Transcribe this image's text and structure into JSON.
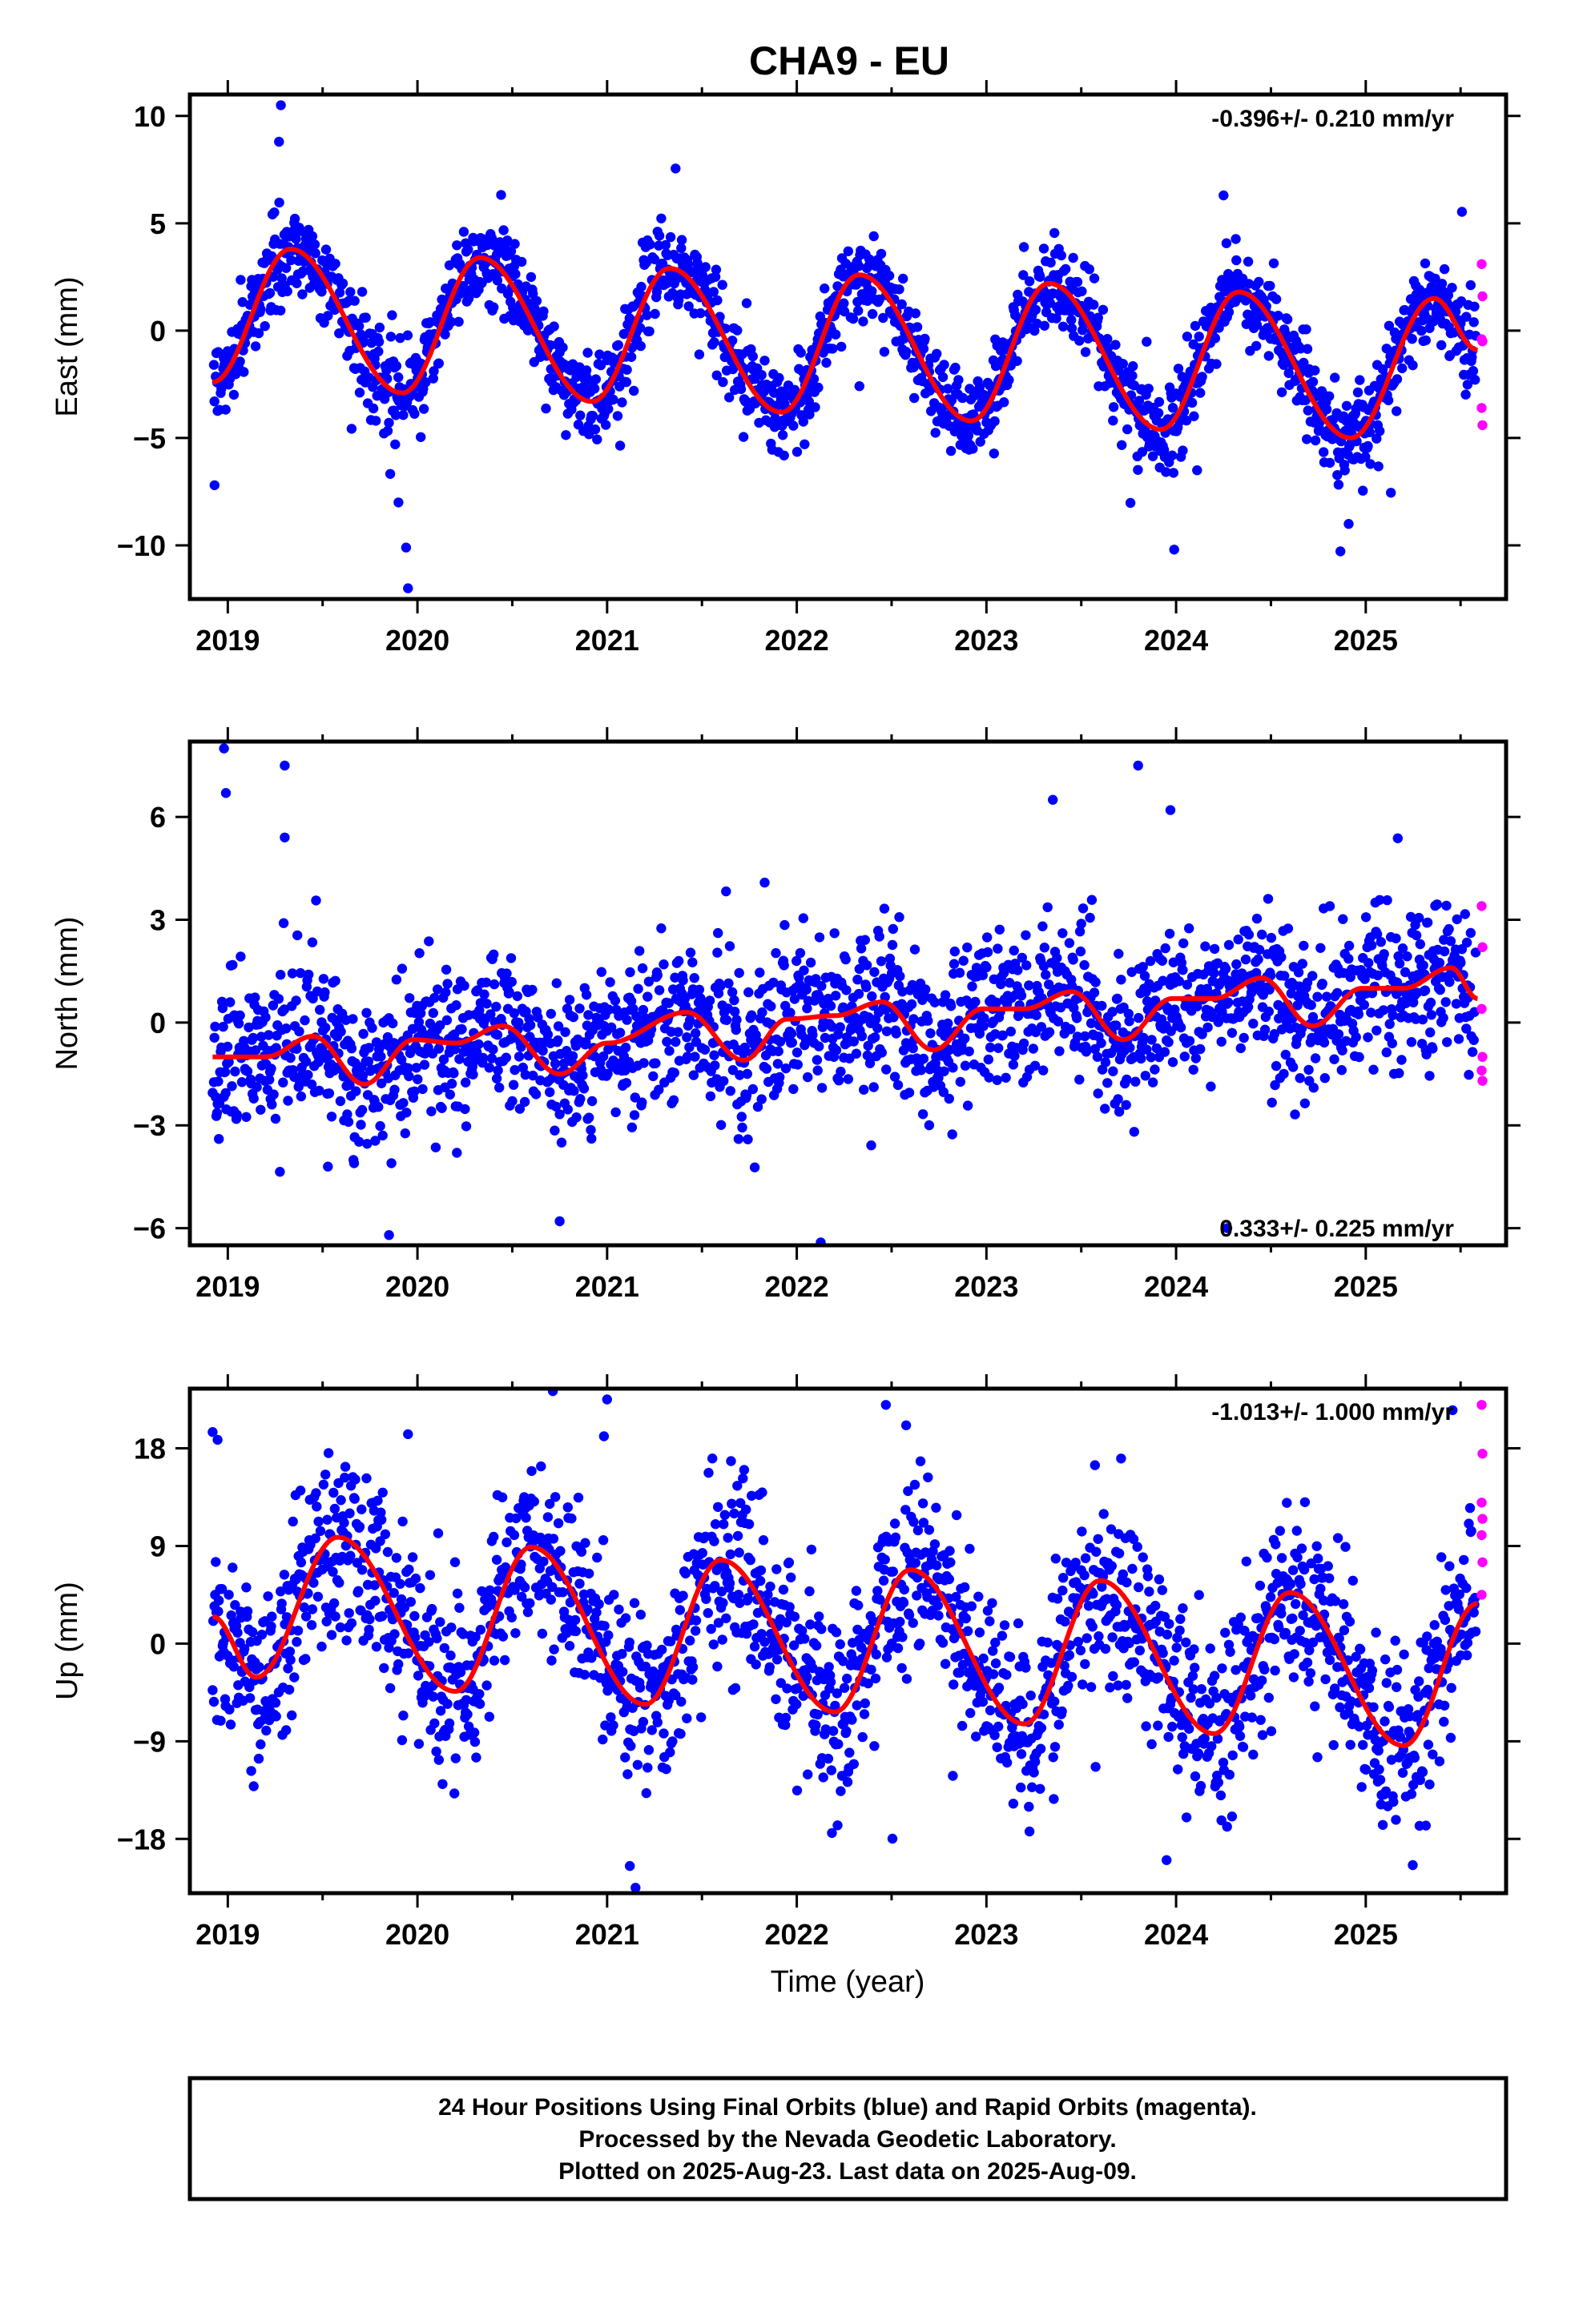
{
  "page": {
    "title": "CHA9 - EU",
    "x_axis_label": "Time (year)",
    "footer": {
      "line1": "24 Hour Positions Using Final Orbits (blue) and Rapid Orbits (magenta).",
      "line2": "Processed by the Nevada Geodetic Laboratory.",
      "line3": "Plotted on 2025-Aug-23. Last data on 2025-Aug-09."
    }
  },
  "colors": {
    "final_orbits": "#0000ff",
    "rapid_orbits": "#ff00ff",
    "model_fit": "#ff0000",
    "axes": "#000000"
  },
  "chart_data": [
    {
      "type": "scatter",
      "panel": "east",
      "ylabel": "East (mm)",
      "rate_label": "-0.396+/- 0.210 mm/yr",
      "xlim": [
        2018.8,
        2025.74
      ],
      "ylim": [
        -12.5,
        11.0
      ],
      "x_ticks": [
        2019,
        2020,
        2021,
        2022,
        2023,
        2024,
        2025
      ],
      "y_ticks": [
        -10,
        -5,
        0,
        5,
        10
      ],
      "data_start": 2018.92,
      "data_end": 2025.59,
      "rapid_start": 2025.58,
      "fit": {
        "trend_intercept_at_2022": -0.05,
        "trend_rate_mm_per_yr": -0.396,
        "annual_amplitude_mm": 3.3,
        "annual_peak_phase_year_fraction": 0.36,
        "semiannual_amplitude_mm": 0.0,
        "scatter_mm": 1.0,
        "nodes": [
          [
            2018.92,
            -2.4
          ],
          [
            2019.33,
            3.8
          ],
          [
            2019.92,
            -2.9
          ],
          [
            2020.33,
            3.4
          ],
          [
            2020.92,
            -3.3
          ],
          [
            2021.33,
            2.9
          ],
          [
            2021.92,
            -3.8
          ],
          [
            2022.33,
            2.6
          ],
          [
            2022.92,
            -4.2
          ],
          [
            2023.33,
            2.2
          ],
          [
            2023.92,
            -4.6
          ],
          [
            2024.33,
            1.8
          ],
          [
            2024.92,
            -5.0
          ],
          [
            2025.36,
            1.5
          ],
          [
            2025.59,
            -0.9
          ]
        ]
      },
      "outliers": [
        [
          2019.28,
          10.5
        ],
        [
          2019.27,
          8.8
        ],
        [
          2019.95,
          -12.0
        ],
        [
          2019.94,
          -10.1
        ],
        [
          2023.99,
          -10.2
        ],
        [
          2024.25,
          6.3
        ],
        [
          2018.93,
          -7.2
        ],
        [
          2019.9,
          -8.0
        ],
        [
          2024.91,
          -9.0
        ]
      ],
      "rapid_points": [
        3.1,
        1.6,
        -0.4,
        -0.5,
        -3.6,
        -4.4
      ]
    },
    {
      "type": "scatter",
      "panel": "north",
      "ylabel": "North (mm)",
      "rate_label": "0.333+/- 0.225 mm/yr",
      "xlim": [
        2018.8,
        2025.74
      ],
      "ylim": [
        -6.5,
        8.2
      ],
      "x_ticks": [
        2019,
        2020,
        2021,
        2022,
        2023,
        2024,
        2025
      ],
      "y_ticks": [
        -6,
        -3,
        0,
        3,
        6
      ],
      "data_start": 2018.92,
      "data_end": 2025.59,
      "rapid_start": 2025.58,
      "fit": {
        "scatter_mm": 1.1,
        "nodes": [
          [
            2018.92,
            -1.0
          ],
          [
            2019.2,
            -1.0
          ],
          [
            2019.45,
            -0.4
          ],
          [
            2019.72,
            -1.8
          ],
          [
            2019.98,
            -0.5
          ],
          [
            2020.2,
            -0.6
          ],
          [
            2020.45,
            -0.1
          ],
          [
            2020.75,
            -1.5
          ],
          [
            2021.0,
            -0.6
          ],
          [
            2021.42,
            0.3
          ],
          [
            2021.72,
            -1.1
          ],
          [
            2021.95,
            0.1
          ],
          [
            2022.2,
            0.2
          ],
          [
            2022.45,
            0.6
          ],
          [
            2022.72,
            -0.8
          ],
          [
            2022.98,
            0.4
          ],
          [
            2023.2,
            0.4
          ],
          [
            2023.45,
            0.9
          ],
          [
            2023.72,
            -0.5
          ],
          [
            2023.98,
            0.7
          ],
          [
            2024.2,
            0.7
          ],
          [
            2024.45,
            1.3
          ],
          [
            2024.72,
            -0.1
          ],
          [
            2024.98,
            1.0
          ],
          [
            2025.2,
            1.0
          ],
          [
            2025.45,
            1.6
          ],
          [
            2025.59,
            0.7
          ]
        ]
      },
      "outliers": [
        [
          2018.98,
          8.0
        ],
        [
          2018.99,
          6.7
        ],
        [
          2019.3,
          7.5
        ],
        [
          2019.3,
          5.4
        ],
        [
          2023.35,
          6.5
        ],
        [
          2023.8,
          7.5
        ],
        [
          2023.97,
          6.2
        ],
        [
          2019.85,
          -6.2
        ],
        [
          2020.75,
          -5.8
        ],
        [
          2024.27,
          -6.0
        ]
      ],
      "rapid_points": [
        3.4,
        2.2,
        0.4,
        -1.0,
        -1.4,
        -1.7
      ]
    },
    {
      "type": "scatter",
      "panel": "up",
      "ylabel": "Up (mm)",
      "rate_label": "-1.013+/- 1.000 mm/yr",
      "xlim": [
        2018.8,
        2025.74
      ],
      "ylim": [
        -23.0,
        23.5
      ],
      "x_ticks": [
        2019,
        2020,
        2021,
        2022,
        2023,
        2024,
        2025
      ],
      "y_ticks": [
        -18,
        -9,
        0,
        9,
        18
      ],
      "data_start": 2018.92,
      "data_end": 2025.59,
      "rapid_start": 2025.58,
      "fit": {
        "scatter_mm": 4.2,
        "nodes": [
          [
            2018.92,
            2.5
          ],
          [
            2019.15,
            -3.1
          ],
          [
            2019.58,
            9.8
          ],
          [
            2020.2,
            -4.4
          ],
          [
            2020.6,
            8.9
          ],
          [
            2021.2,
            -5.6
          ],
          [
            2021.6,
            7.7
          ],
          [
            2022.2,
            -6.3
          ],
          [
            2022.6,
            6.8
          ],
          [
            2023.2,
            -7.4
          ],
          [
            2023.6,
            5.8
          ],
          [
            2024.2,
            -8.3
          ],
          [
            2024.6,
            4.7
          ],
          [
            2025.2,
            -9.4
          ],
          [
            2025.59,
            3.7
          ]
        ]
      },
      "outliers": [
        [
          2021.0,
          22.5
        ],
        [
          2022.47,
          22.0
        ],
        [
          2021.15,
          -22.5
        ],
        [
          2021.12,
          -20.5
        ],
        [
          2018.92,
          19.5
        ],
        [
          2019.95,
          19.3
        ]
      ],
      "rapid_points": [
        22.0,
        17.5,
        13.0,
        11.5,
        10.0,
        7.5,
        4.5
      ]
    }
  ]
}
